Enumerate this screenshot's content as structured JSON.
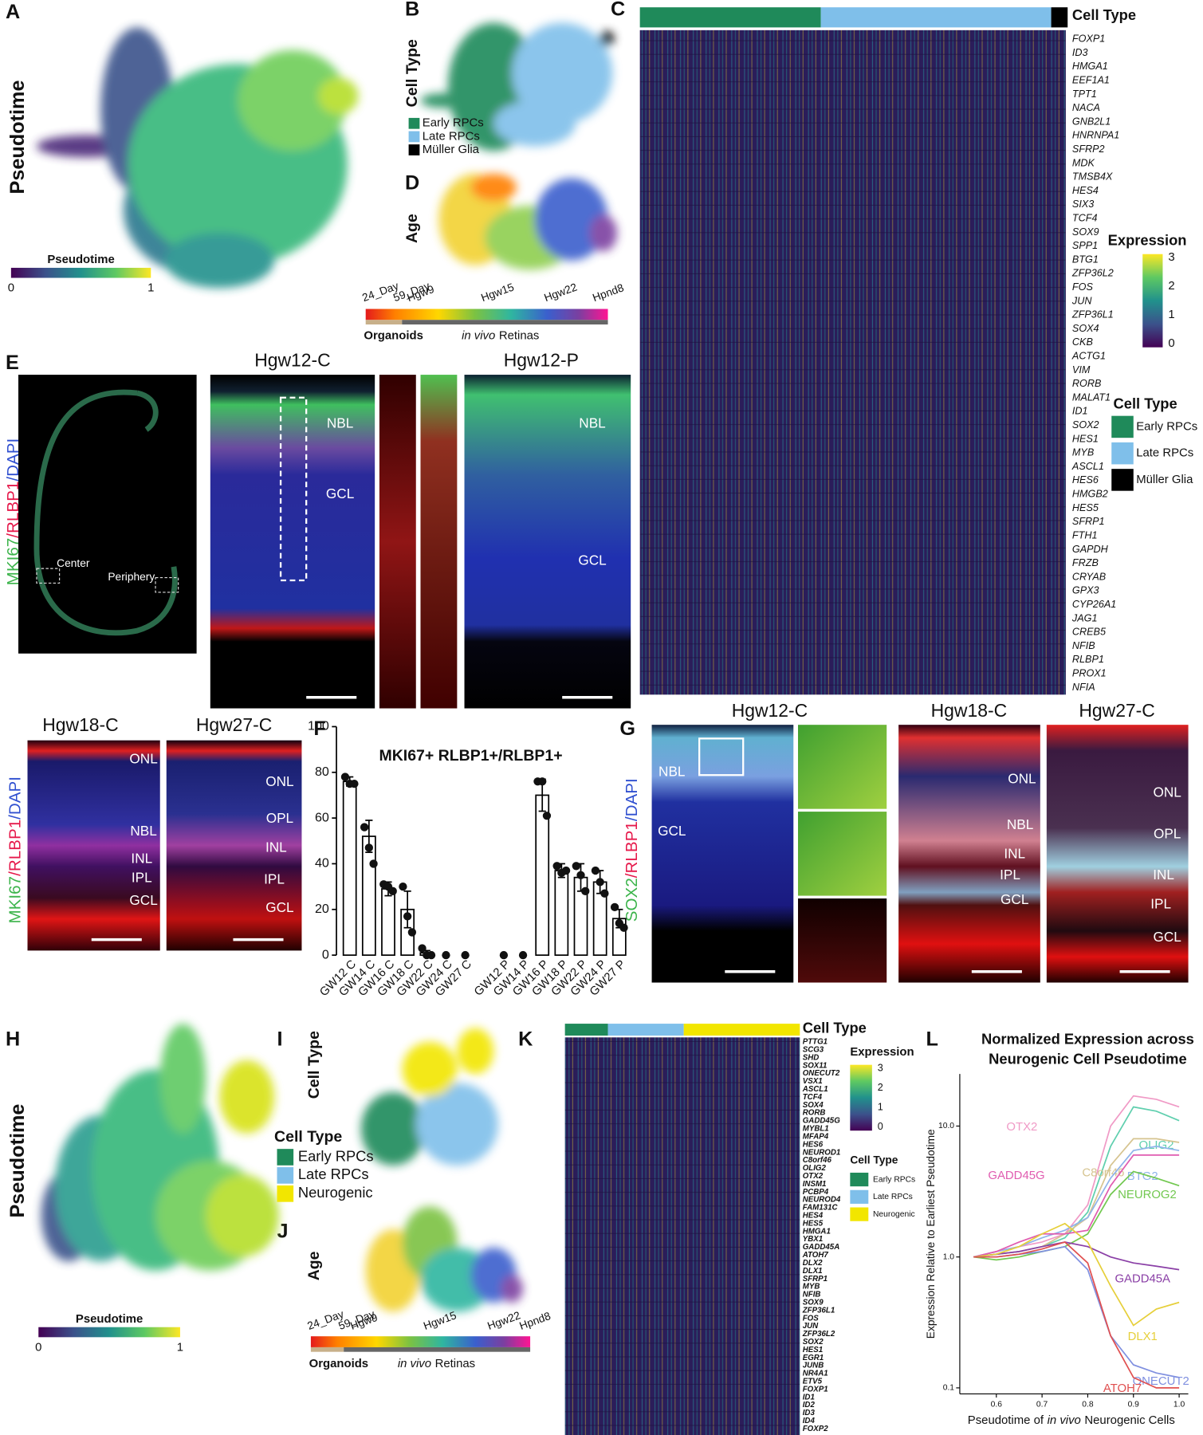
{
  "panel_letters": [
    "A",
    "B",
    "C",
    "D",
    "E",
    "F",
    "G",
    "H",
    "I",
    "J",
    "K",
    "L"
  ],
  "panel_a": {
    "ylabel": "Pseudotime",
    "colorbar": {
      "title": "Pseudotime",
      "ticks": [
        0,
        1
      ]
    }
  },
  "panel_b": {
    "ylabel": "Cell Type",
    "legend": [
      {
        "label": "Early RPCs",
        "color": "#1f8a5a"
      },
      {
        "label": "Late RPCs",
        "color": "#7fbfea"
      },
      {
        "label": "Müller Glia",
        "color": "#000000"
      }
    ]
  },
  "panel_c": {
    "ylabel": "Age",
    "ticks": [
      "24_Day",
      "59_Day",
      "Hgw9",
      "Hgw15",
      "Hgw22",
      "Hpnd8"
    ],
    "groups": [
      "Organoids",
      [
        "in vivo",
        "Retinas"
      ]
    ]
  },
  "panel_d": {
    "bar_label": "Cell Type",
    "genes": [
      "FOXP1",
      "ID3",
      "HMGA1",
      "EEF1A1",
      "TPT1",
      "NACA",
      "GNB2L1",
      "HNRNPA1",
      "SFRP2",
      "MDK",
      "TMSB4X",
      "HES4",
      "SIX3",
      "TCF4",
      "SOX9",
      "SPP1",
      "BTG1",
      "ZFP36L2",
      "FOS",
      "JUN",
      "ZFP36L1",
      "SOX4",
      "CKB",
      "ACTG1",
      "VIM",
      "RORB",
      "MALAT1",
      "ID1",
      "SOX2",
      "HES1",
      "MYB",
      "ASCL1",
      "HES6",
      "HMGB2",
      "HES5",
      "SFRP1",
      "FTH1",
      "GAPDH",
      "FRZB",
      "CRYAB",
      "GPX3",
      "CYP26A1",
      "JAG1",
      "CREB5",
      "NFIB",
      "RLBP1",
      "PROX1",
      "NFIA"
    ],
    "colorbar": {
      "title": "Expression",
      "ticks": [
        3,
        2,
        1,
        0
      ]
    },
    "legend": {
      "title": "Cell Type",
      "items": [
        {
          "label": "Early RPCs",
          "color": "#1f8a5a"
        },
        {
          "label": "Late RPCs",
          "color": "#7fbfea"
        },
        {
          "label": "Müller Glia",
          "color": "#000000"
        }
      ]
    }
  },
  "panel_e": {
    "stain": [
      "MKI67",
      "/RLBP1",
      "/DAPI"
    ],
    "overview_labels": [
      "Center",
      "Periphery"
    ],
    "images": [
      {
        "title": "Hgw12-C",
        "labels": [
          "NBL",
          "GCL"
        ]
      },
      {
        "title": "Hgw12-P",
        "labels": [
          "NBL",
          "GCL"
        ]
      },
      {
        "title": "Hgw18-C",
        "labels": [
          "ONL",
          "NBL",
          "INL",
          "IPL",
          "GCL"
        ]
      },
      {
        "title": "Hgw27-C",
        "labels": [
          "ONL",
          "OPL",
          "INL",
          "IPL",
          "GCL"
        ]
      }
    ]
  },
  "panel_g": {
    "stain": [
      "SOX2",
      "/RLBP1",
      "/DAPI"
    ],
    "images": [
      {
        "title": "Hgw12-C",
        "labels": [
          "NBL",
          "GCL"
        ]
      },
      {
        "title": "Hgw18-C",
        "labels": [
          "ONL",
          "NBL",
          "INL",
          "IPL",
          "GCL"
        ]
      },
      {
        "title": "Hgw27-C",
        "labels": [
          "ONL",
          "OPL",
          "INL",
          "IPL",
          "GCL"
        ]
      }
    ]
  },
  "panel_h": {
    "ylabel": "Pseudotime",
    "colorbar": {
      "title": "Pseudotime",
      "ticks": [
        0,
        1
      ]
    }
  },
  "panel_i": {
    "ylabel": "Cell Type",
    "legend": {
      "title": "Cell Type",
      "items": [
        {
          "label": "Early RPCs",
          "color": "#1f8a5a"
        },
        {
          "label": "Late RPCs",
          "color": "#7fbfea"
        },
        {
          "label": "Neurogenic",
          "color": "#f2e600"
        }
      ]
    }
  },
  "panel_j": {
    "ylabel": "Age",
    "ticks": [
      "24_Day",
      "59_Day",
      "Hgw9",
      "Hgw15",
      "Hgw22",
      "Hpnd8"
    ],
    "groups": [
      "Organoids",
      [
        "in vivo",
        "Retinas"
      ]
    ]
  },
  "panel_k": {
    "bar_label": "Cell Type",
    "genes": [
      "PTTG1",
      "SCG3",
      "SHD",
      "SOX11",
      "ONECUT2",
      "VSX1",
      "ASCL1",
      "TCF4",
      "SOX4",
      "RORB",
      "GADD45G",
      "MYBL1",
      "MFAP4",
      "HES6",
      "NEUROD1",
      "C8orf46",
      "OLIG2",
      "OTX2",
      "INSM1",
      "PCBP4",
      "NEUROD4",
      "FAM131C",
      "HES4",
      "HES5",
      "HMGA1",
      "YBX1",
      "GADD45A",
      "ATOH7",
      "DLX2",
      "DLX1",
      "SFRP1",
      "MYB",
      "NFIB",
      "SOX9",
      "ZFP36L1",
      "FOS",
      "JUN",
      "ZFP36L2",
      "SOX2",
      "HES1",
      "EGR1",
      "JUNB",
      "NR4A1",
      "ETV5",
      "FOXP1",
      "ID1",
      "ID2",
      "ID3",
      "ID4",
      "FOXP2"
    ],
    "colorbar": {
      "title": "Expression",
      "ticks": [
        3,
        2,
        1,
        0
      ]
    },
    "legend": {
      "title": "Cell Type",
      "items": [
        {
          "label": "Early RPCs",
          "color": "#1f8a5a"
        },
        {
          "label": "Late RPCs",
          "color": "#7fbfea"
        },
        {
          "label": "Neurogenic",
          "color": "#f2e600"
        }
      ]
    }
  },
  "chart_data": [
    {
      "type": "bar",
      "title": "MKI67+ RLBP1+/RLBP1+",
      "categories": [
        "GW12 C",
        "GW14 C",
        "GW16 C",
        "GW18 C",
        "GW22 C",
        "GW24 C",
        "GW27 C",
        null,
        "GW12 P",
        "GW14 P",
        "GW16 P",
        "GW18 P",
        "GW22 P",
        "GW24 P",
        "GW27 P"
      ],
      "values": [
        76,
        52,
        29,
        20,
        1,
        0,
        0,
        null,
        0,
        0,
        70,
        37,
        34,
        32,
        16
      ],
      "errors": [
        2,
        7,
        3,
        8,
        1,
        0,
        0,
        null,
        0,
        0,
        7,
        3,
        6,
        5,
        4
      ],
      "points": [
        [
          78,
          75,
          75
        ],
        [
          56,
          47,
          40
        ],
        [
          31,
          30,
          28
        ],
        [
          30,
          17,
          10
        ],
        [
          3,
          0,
          0
        ],
        [
          0
        ],
        [
          0
        ],
        null,
        [
          0
        ],
        [
          0
        ],
        [
          76,
          76,
          61
        ],
        [
          39,
          36,
          37
        ],
        [
          39,
          35,
          28
        ],
        [
          37,
          32,
          27
        ],
        [
          21,
          14,
          12
        ]
      ],
      "color": "#ffffff",
      "ylim": [
        0,
        100
      ],
      "yticks": [
        0,
        20,
        40,
        60,
        80,
        100
      ]
    },
    {
      "type": "line",
      "title": [
        "Normalized Expression across",
        "Neurogenic Cell Pseudotime"
      ],
      "xlabel": [
        "Pseudotime of",
        "in vivo",
        "Neurogenic Cells"
      ],
      "ylabel": "Expression Relative to Earliest Pseudotime",
      "log_y": true,
      "x": [
        0.55,
        0.6,
        0.65,
        0.7,
        0.75,
        0.8,
        0.85,
        0.9,
        0.95,
        1.0
      ],
      "xlim": [
        0.52,
        1.02
      ],
      "xticks": [
        0.6,
        0.7,
        0.8,
        0.9,
        {
          "value": 1,
          "label": "1.0"
        }
      ],
      "ylim": [
        0.09,
        25
      ],
      "yticks": [
        0.1,
        {
          "value": 1,
          "label": "1.0"
        },
        {
          "value": 10,
          "label": "10.0"
        }
      ],
      "series": [
        {
          "name": "OTX2",
          "color": "#f09ac6",
          "values": [
            1,
            1.1,
            1.2,
            1.3,
            1.5,
            2.5,
            10,
            17,
            16,
            14
          ]
        },
        {
          "name": "OLIG2",
          "color": "#5fcfae",
          "values": [
            1,
            1.05,
            1.1,
            1.2,
            1.4,
            2.2,
            7,
            14,
            13,
            11
          ]
        },
        {
          "name": "C8orf46",
          "color": "#d6c490",
          "values": [
            1,
            1.05,
            1.1,
            1.2,
            1.5,
            2,
            5,
            8,
            8,
            7.5
          ]
        },
        {
          "name": "BTG2",
          "color": "#8fb4ea",
          "values": [
            1,
            1.1,
            1.2,
            1.4,
            1.6,
            2,
            4,
            6.5,
            7,
            6.5
          ]
        },
        {
          "name": "GADD45G",
          "color": "#e05cb0",
          "values": [
            1,
            1.1,
            1.3,
            1.5,
            1.5,
            1.6,
            3.5,
            6,
            6,
            6
          ]
        },
        {
          "name": "NEUROG2",
          "color": "#72c850",
          "values": [
            1,
            0.95,
            1,
            1.1,
            1.2,
            1.5,
            3,
            4.5,
            4,
            3.5
          ]
        },
        {
          "name": "GADD45A",
          "color": "#8a3fa6",
          "values": [
            1,
            1.05,
            1.1,
            1.2,
            1.3,
            1.2,
            1,
            0.9,
            0.85,
            0.8
          ]
        },
        {
          "name": "DLX1",
          "color": "#e6cf3a",
          "values": [
            1,
            1.05,
            1.2,
            1.5,
            1.8,
            1.3,
            0.6,
            0.3,
            0.4,
            0.45
          ]
        },
        {
          "name": "ONECUT2",
          "color": "#8090e0",
          "values": [
            1,
            1,
            1.05,
            1.1,
            1.2,
            0.8,
            0.25,
            0.15,
            0.13,
            0.12
          ]
        },
        {
          "name": "ATOH7",
          "color": "#e05050",
          "values": [
            1,
            1,
            1.05,
            1.15,
            1.3,
            0.9,
            0.25,
            0.12,
            0.1,
            0.1
          ]
        }
      ]
    }
  ]
}
